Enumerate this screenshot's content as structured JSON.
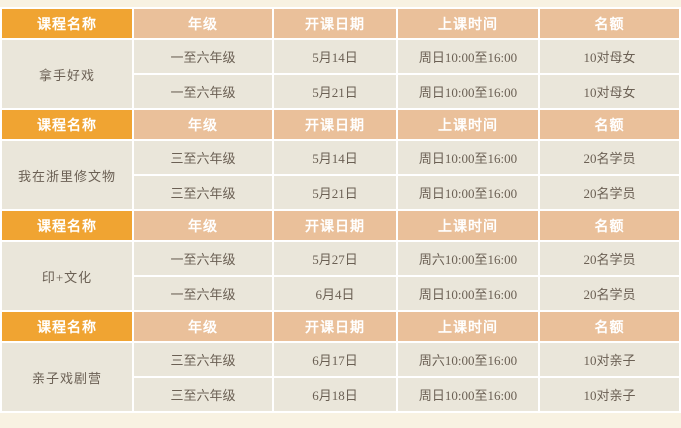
{
  "page": {
    "background_color": "#F8F2E2"
  },
  "colors": {
    "header_first_column_bg": "#F0A432",
    "header_bg": "#EAC09A",
    "row_bg": "#EAE6DA",
    "grid_line": "#FFFFFF",
    "header_text": "#FFFFFF",
    "body_text": "#6B6054"
  },
  "table": {
    "columns": [
      "课程名称",
      "年级",
      "开课日期",
      "上课时间",
      "名额"
    ],
    "sections": [
      {
        "course": "拿手好戏",
        "rows": [
          {
            "grade": "一至六年级",
            "date": "5月14日",
            "time": "周日10:00至16:00",
            "quota": "10对母女"
          },
          {
            "grade": "一至六年级",
            "date": "5月21日",
            "time": "周日10:00至16:00",
            "quota": "10对母女"
          }
        ]
      },
      {
        "course": "我在浙里修文物",
        "rows": [
          {
            "grade": "三至六年级",
            "date": "5月14日",
            "time": "周日10:00至16:00",
            "quota": "20名学员"
          },
          {
            "grade": "三至六年级",
            "date": "5月21日",
            "time": "周日10:00至16:00",
            "quota": "20名学员"
          }
        ]
      },
      {
        "course": "印+文化",
        "rows": [
          {
            "grade": "一至六年级",
            "date": "5月27日",
            "time": "周六10:00至16:00",
            "quota": "20名学员"
          },
          {
            "grade": "一至六年级",
            "date": "6月4日",
            "time": "周日10:00至16:00",
            "quota": "20名学员"
          }
        ]
      },
      {
        "course": "亲子戏剧营",
        "rows": [
          {
            "grade": "三至六年级",
            "date": "6月17日",
            "time": "周六10:00至16:00",
            "quota": "10对亲子"
          },
          {
            "grade": "三至六年级",
            "date": "6月18日",
            "time": "周日10:00至16:00",
            "quota": "10对亲子"
          }
        ]
      }
    ]
  }
}
